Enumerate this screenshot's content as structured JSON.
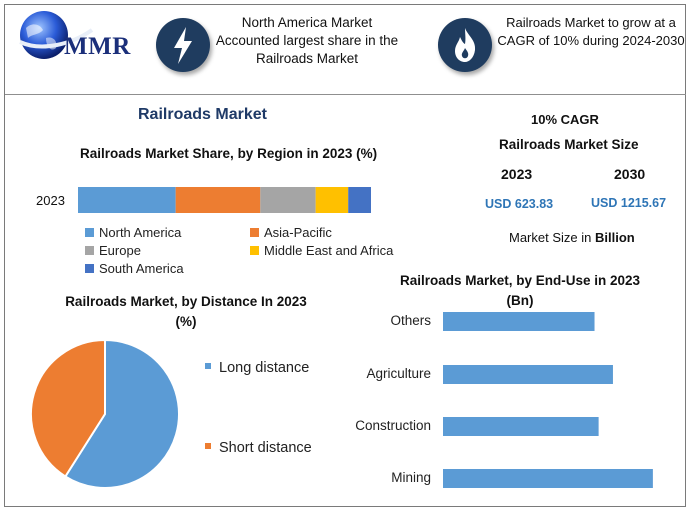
{
  "header": {
    "logo_text": "MMR",
    "box1_text": "North America Market Accounted largest share in the Railroads Market",
    "box1_icon": "lightning-bolt-icon",
    "box2_text": "Railroads Market to grow at a CAGR of 10% during 2024-2030",
    "box2_icon": "flame-icon"
  },
  "main_title": "Railroads Market",
  "market_size": {
    "cagr": "10% CAGR",
    "title": "Railroads Market Size",
    "year1": "2023",
    "year2": "2030",
    "value1": "USD 623.83",
    "value2": "USD 1215.67",
    "note_prefix": "Market Size in ",
    "note_unit": "Billion"
  },
  "chart_data": [
    {
      "type": "bar",
      "orientation": "horizontal-stacked",
      "title": "Railroads Market Share, by Region in 2023 (%)",
      "categories": [
        "2023"
      ],
      "series": [
        {
          "name": "North America",
          "values": [
            30
          ],
          "color": "#5b9bd5"
        },
        {
          "name": "Asia-Pacific",
          "values": [
            26
          ],
          "color": "#ed7d31"
        },
        {
          "name": "Europe",
          "values": [
            17
          ],
          "color": "#a5a5a5"
        },
        {
          "name": "Middle East and Africa",
          "values": [
            10
          ],
          "color": "#ffc000"
        },
        {
          "name": "South America",
          "values": [
            7
          ],
          "color": "#4472c4"
        }
      ],
      "legend": "bottom"
    },
    {
      "type": "pie",
      "title_line1": "Railroads Market, by Distance In 2023",
      "title_line2": "(%)",
      "labels": [
        "Long distance",
        "Short distance"
      ],
      "values": [
        59,
        41
      ],
      "colors": [
        "#5b9bd5",
        "#ed7d31"
      ],
      "legend": "right"
    },
    {
      "type": "bar",
      "orientation": "horizontal",
      "title_line1": "Railroads Market, by End-Use in 2023",
      "title_line2": "(Bn)",
      "categories": [
        "Others",
        "Agriculture",
        "Construction",
        "Mining"
      ],
      "values": [
        148,
        166,
        152,
        205
      ],
      "color": "#5b9bd5",
      "legend": "none"
    }
  ]
}
